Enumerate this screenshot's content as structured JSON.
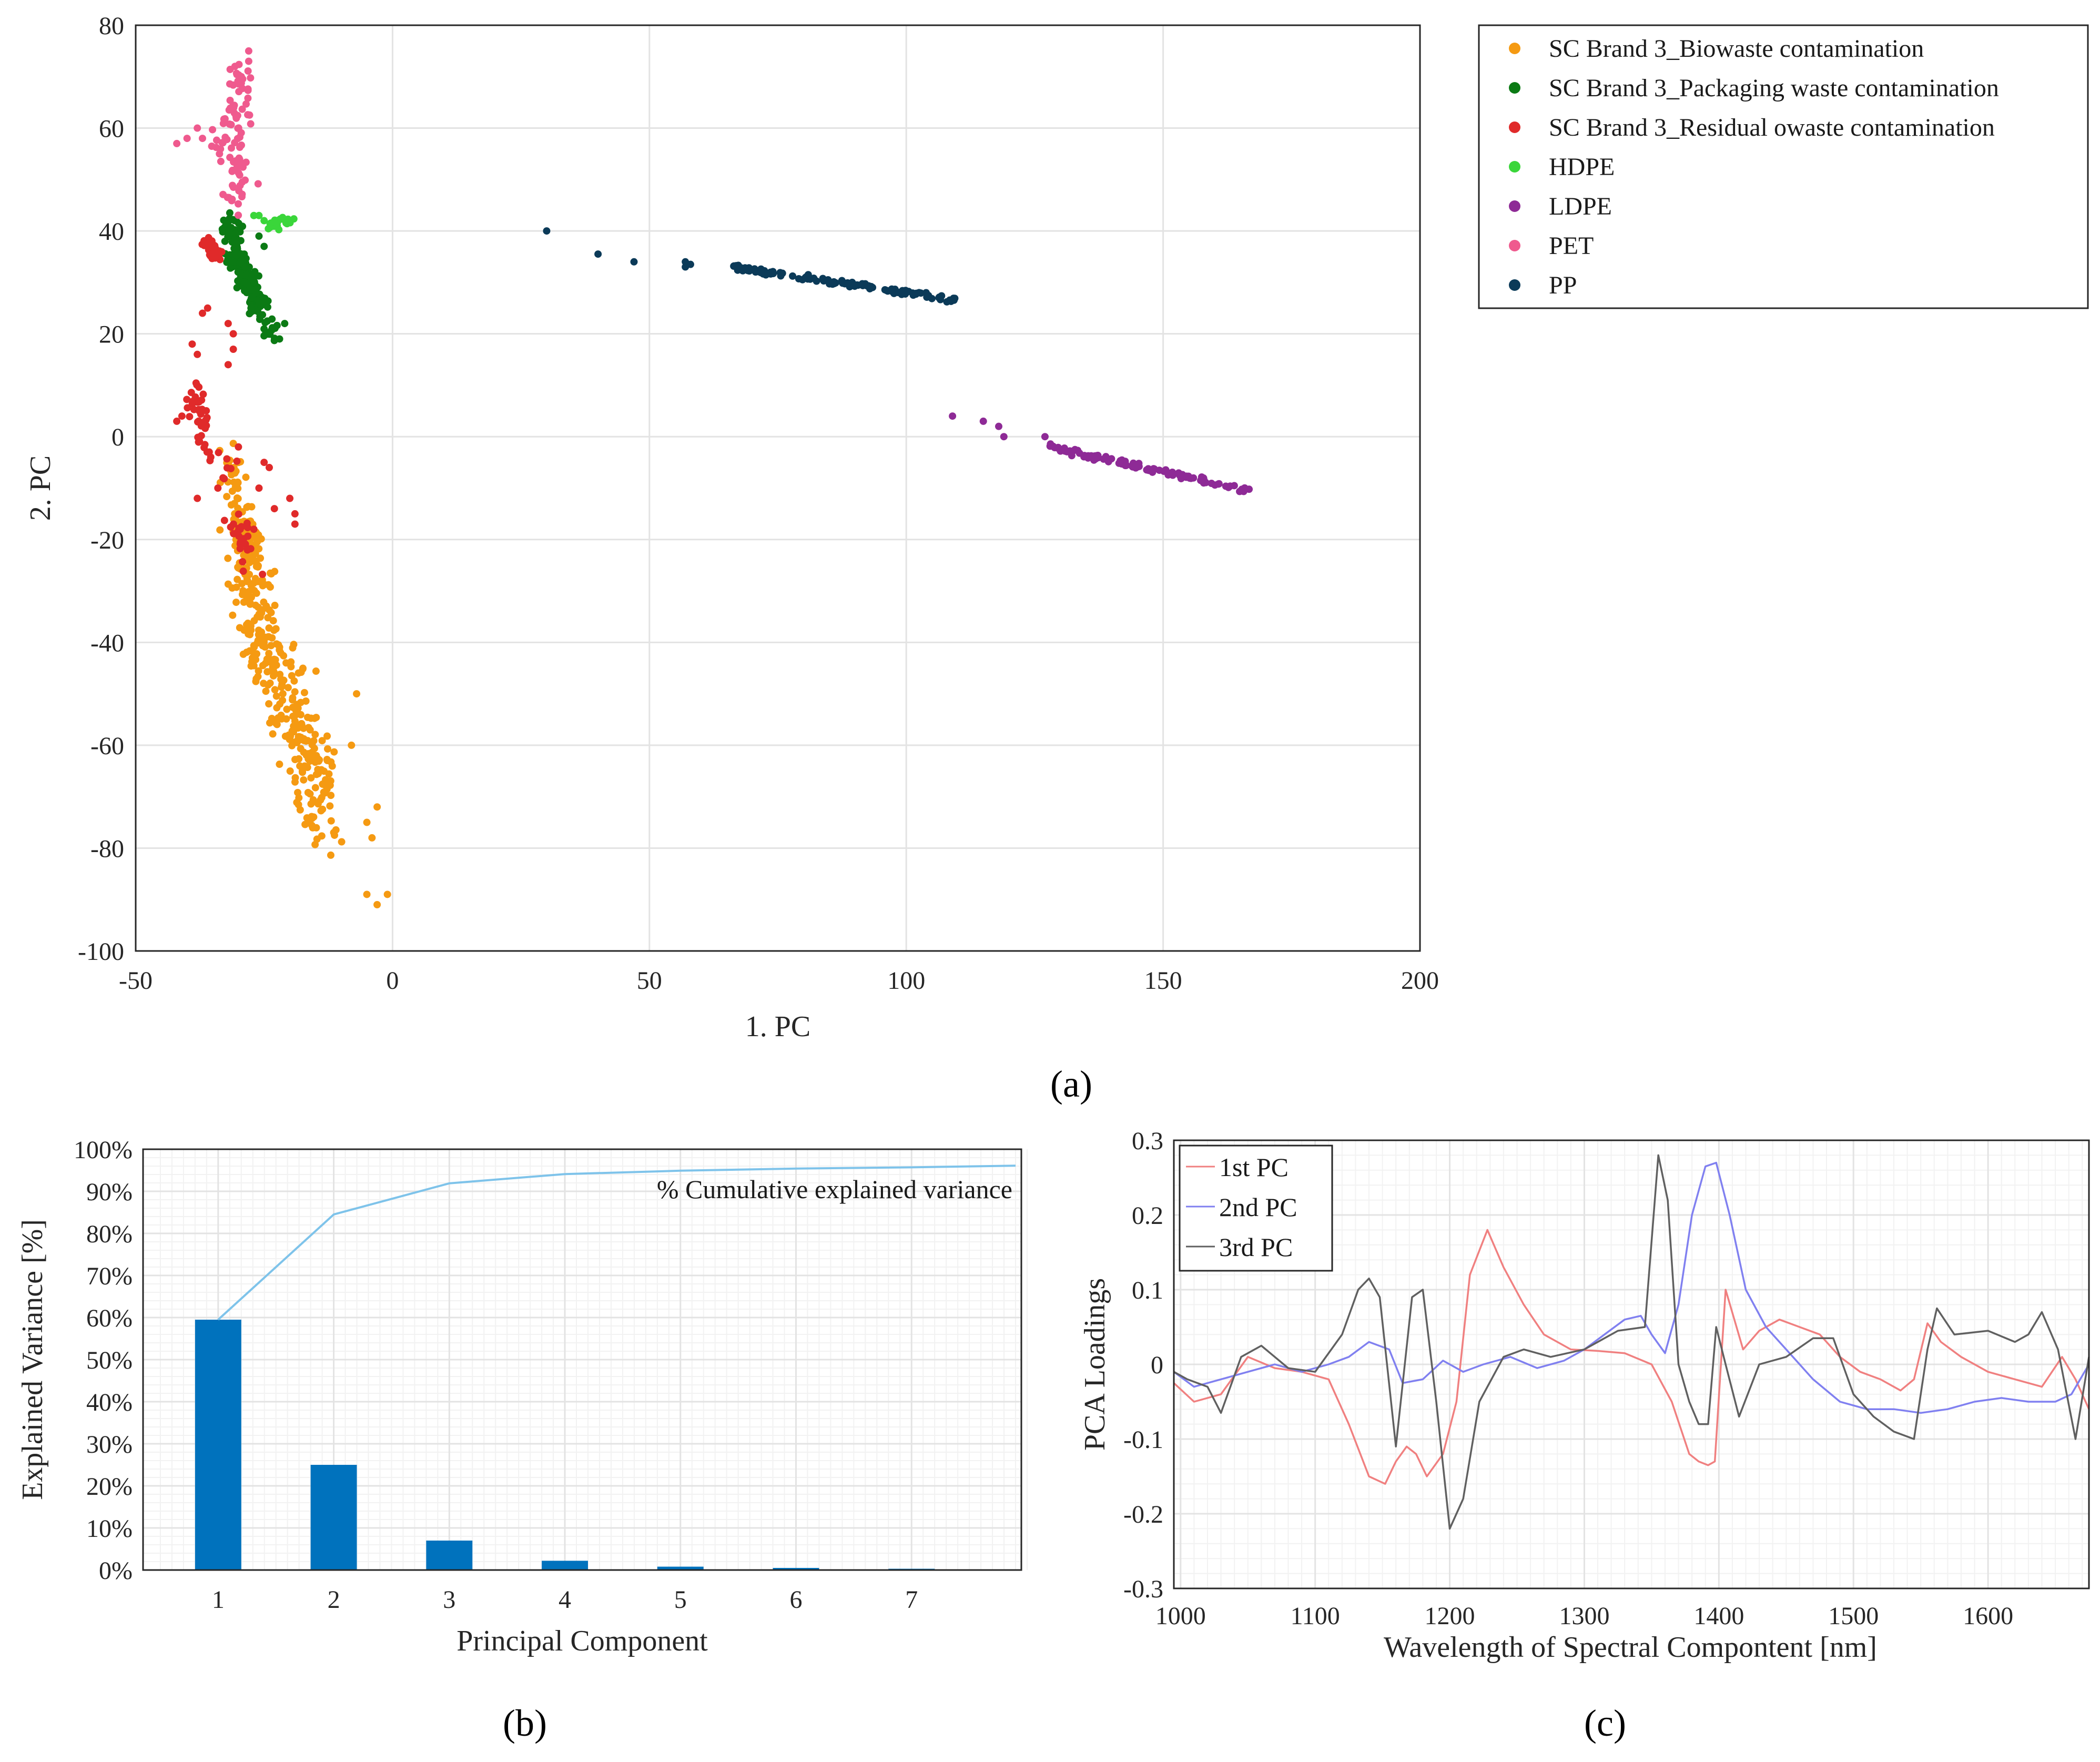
{
  "panel_a": {
    "label": "(a)",
    "xlabel": "1. PC",
    "ylabel": "2. PC",
    "xticks": [
      "-50",
      "0",
      "50",
      "100",
      "150",
      "200"
    ],
    "yticks": [
      "80",
      "60",
      "40",
      "20",
      "0",
      "-20",
      "-40",
      "-60",
      "-80",
      "-100"
    ],
    "legend": [
      {
        "label": "SC Brand 3_Biowaste contamination",
        "color": "#f59a12"
      },
      {
        "label": "SC Brand 3_Packaging waste contamination",
        "color": "#0b7a14"
      },
      {
        "label": "SC Brand 3_Residual owaste contamination",
        "color": "#e02a2a"
      },
      {
        "label": "HDPE",
        "color": "#3ad63a"
      },
      {
        "label": "LDPE",
        "color": "#8e2a96"
      },
      {
        "label": "PET",
        "color": "#ef5a8e"
      },
      {
        "label": "PP",
        "color": "#0b3a58"
      }
    ]
  },
  "panel_b": {
    "label": "(b)",
    "xlabel": "Principal Component",
    "ylabel": "Explained Variance [%]",
    "annotation": "% Cumulative explained variance",
    "xticks": [
      "1",
      "2",
      "3",
      "4",
      "5",
      "6",
      "7"
    ],
    "yticks": [
      "100%",
      "90%",
      "80%",
      "70%",
      "60%",
      "50%",
      "40%",
      "30%",
      "20%",
      "10%",
      "0%"
    ],
    "bar_color": "#0072bd",
    "line_color": "#7ec3ea"
  },
  "panel_c": {
    "label": "(c)",
    "xlabel": "Wavelength of Spectral Compontent [nm]",
    "ylabel": "PCA Loadings",
    "xticks": [
      "1000",
      "1100",
      "1200",
      "1300",
      "1400",
      "1500",
      "1600"
    ],
    "yticks": [
      "0.3",
      "0.2",
      "0.1",
      "0",
      "-0.1",
      "-0.2",
      "-0.3"
    ],
    "legend": [
      {
        "label": "1st PC",
        "color": "#f08080"
      },
      {
        "label": "2nd PC",
        "color": "#8080f0"
      },
      {
        "label": "3rd PC",
        "color": "#606060"
      }
    ]
  },
  "chart_data": [
    {
      "type": "scatter",
      "xlabel": "1. PC",
      "ylabel": "2. PC",
      "xlim": [
        -50,
        200
      ],
      "ylim": [
        -100,
        80
      ],
      "grid": true,
      "legend_position": "outside top-right",
      "series": [
        {
          "name": "SC Brand 3_Biowaste contamination",
          "color": "#f59a12",
          "clusters": [
            {
              "x0": -32,
              "y0": -4,
              "x1": -28,
              "y1": -20,
              "spread": 2,
              "n": 60
            },
            {
              "x0": -29,
              "y0": -20,
              "x1": -24,
              "y1": -45,
              "spread": 3.5,
              "n": 130
            },
            {
              "x0": -25,
              "y0": -42,
              "x1": -15,
              "y1": -65,
              "spread": 4.5,
              "n": 150
            },
            {
              "x0": -17,
              "y0": -60,
              "x1": -13,
              "y1": -80,
              "spread": 3,
              "n": 60
            }
          ],
          "points": [
            [
              -8,
              -60
            ],
            [
              -5,
              -75
            ],
            [
              -4,
              -78
            ],
            [
              -3,
              -72
            ],
            [
              -5,
              -89
            ],
            [
              -3,
              -91
            ],
            [
              -1,
              -89
            ],
            [
              -7,
              -50
            ]
          ]
        },
        {
          "name": "SC Brand 3_Packaging waste contamination",
          "color": "#0b7a14",
          "clusters": [
            {
              "x0": -32,
              "y0": 42,
              "x1": -29,
              "y1": 33,
              "spread": 1.6,
              "n": 70
            },
            {
              "x0": -30,
              "y0": 34,
              "x1": -26,
              "y1": 26,
              "spread": 2,
              "n": 90
            },
            {
              "x0": -27,
              "y0": 26,
              "x1": -23,
              "y1": 20,
              "spread": 1.5,
              "n": 30
            }
          ],
          "points": [
            [
              -22,
              19
            ],
            [
              -21,
              22
            ],
            [
              -25,
              37
            ],
            [
              -26,
              39
            ]
          ]
        },
        {
          "name": "SC Brand 3_Residual owaste contamination",
          "color": "#e02a2a",
          "clusters": [
            {
              "x0": -36,
              "y0": 38,
              "x1": -34,
              "y1": 35,
              "spread": 1.2,
              "n": 40
            },
            {
              "x0": -39,
              "y0": 10,
              "x1": -36,
              "y1": 0,
              "spread": 1.5,
              "n": 30
            },
            {
              "x0": -38,
              "y0": -1,
              "x1": -31,
              "y1": -6,
              "spread": 1.5,
              "n": 15
            },
            {
              "x0": -31,
              "y0": -15,
              "x1": -28,
              "y1": -25,
              "spread": 2,
              "n": 25
            }
          ],
          "points": [
            [
              -36,
              25
            ],
            [
              -37,
              24
            ],
            [
              -32,
              22
            ],
            [
              -31,
              20
            ],
            [
              -31,
              17
            ],
            [
              -32,
              14
            ],
            [
              -39,
              18
            ],
            [
              -38,
              16
            ],
            [
              -42,
              3
            ],
            [
              -41,
              4
            ],
            [
              -25,
              -5
            ],
            [
              -24,
              -6
            ],
            [
              -23,
              -14
            ],
            [
              -20,
              -12
            ],
            [
              -19,
              -15
            ],
            [
              -19,
              -17
            ],
            [
              -27,
              -18
            ],
            [
              -26,
              -10
            ],
            [
              -33,
              -8
            ],
            [
              -34,
              -10
            ],
            [
              -38,
              -12
            ],
            [
              -30,
              -2
            ]
          ]
        },
        {
          "name": "HDPE",
          "color": "#3ad63a",
          "clusters": [
            {
              "x0": -24,
              "y0": 41,
              "x1": -20,
              "y1": 42,
              "spread": 0.8,
              "n": 25
            }
          ],
          "points": [
            [
              -27,
              43
            ],
            [
              -26,
              43
            ],
            [
              -25,
              42
            ]
          ]
        },
        {
          "name": "LDPE",
          "color": "#8e2a96",
          "clusters": [
            {
              "x0": 128,
              "y0": -2,
              "x1": 167,
              "y1": -10.5,
              "spread": 0.5,
              "n": 110
            }
          ],
          "points": [
            [
              109,
              4
            ],
            [
              115,
              3
            ],
            [
              118,
              2
            ],
            [
              119,
              0
            ],
            [
              127,
              0
            ]
          ]
        },
        {
          "name": "PET",
          "color": "#ef5a8e",
          "clusters": [
            {
              "x0": -30,
              "y0": 72,
              "x1": -30,
              "y1": 60,
              "spread": 2,
              "n": 40
            },
            {
              "x0": -33,
              "y0": 61,
              "x1": -30,
              "y1": 45,
              "spread": 2.8,
              "n": 50
            }
          ],
          "points": [
            [
              -42,
              57
            ],
            [
              -40,
              58
            ],
            [
              -37,
              58
            ],
            [
              -38,
              60
            ],
            [
              -28,
              75
            ],
            [
              -28,
              73
            ]
          ]
        },
        {
          "name": "PP",
          "color": "#0b3a58",
          "clusters": [
            {
              "x0": 66,
              "y0": 33,
              "x1": 110,
              "y1": 26.5,
              "spread": 0.5,
              "n": 120
            }
          ],
          "points": [
            [
              30,
              40
            ],
            [
              40,
              35.5
            ],
            [
              47,
              34
            ],
            [
              57,
              33
            ],
            [
              57,
              34
            ],
            [
              58,
              33.5
            ]
          ]
        }
      ]
    },
    {
      "type": "bar",
      "xlabel": "Principal Component",
      "ylabel": "Explained Variance [%]",
      "categories": [
        "1",
        "2",
        "3",
        "4",
        "5",
        "6",
        "7"
      ],
      "values": [
        59.5,
        25,
        7,
        2.2,
        0.8,
        0.5,
        0.3
      ],
      "cumulative_line": {
        "name": "% Cumulative explained variance",
        "x": [
          1,
          2,
          3,
          4,
          5,
          6,
          7,
          7.9
        ],
        "values": [
          59.5,
          84.5,
          91.9,
          94.1,
          94.9,
          95.4,
          95.7,
          96.1
        ]
      },
      "ylim": [
        0,
        100
      ],
      "grid": true
    },
    {
      "type": "line",
      "xlabel": "Wavelength of Spectral Compontent [nm]",
      "ylabel": "PCA Loadings",
      "xlim": [
        995,
        1675
      ],
      "ylim": [
        -0.3,
        0.3
      ],
      "grid": true,
      "legend_position": "top-left",
      "series": [
        {
          "name": "1st PC",
          "color": "#f08080",
          "x": [
            995,
            1010,
            1030,
            1050,
            1070,
            1090,
            1110,
            1125,
            1140,
            1152,
            1160,
            1168,
            1175,
            1183,
            1195,
            1205,
            1215,
            1228,
            1240,
            1255,
            1270,
            1290,
            1310,
            1330,
            1350,
            1365,
            1378,
            1385,
            1392,
            1397,
            1405,
            1418,
            1430,
            1445,
            1460,
            1475,
            1490,
            1505,
            1520,
            1535,
            1545,
            1555,
            1565,
            1580,
            1600,
            1620,
            1640,
            1655,
            1665,
            1675
          ],
          "values": [
            -0.025,
            -0.05,
            -0.04,
            0.01,
            -0.005,
            -0.01,
            -0.02,
            -0.08,
            -0.15,
            -0.16,
            -0.13,
            -0.11,
            -0.12,
            -0.15,
            -0.12,
            -0.05,
            0.12,
            0.18,
            0.13,
            0.08,
            0.04,
            0.02,
            0.018,
            0.015,
            0.0,
            -0.05,
            -0.12,
            -0.13,
            -0.135,
            -0.13,
            0.1,
            0.02,
            0.045,
            0.06,
            0.05,
            0.04,
            0.01,
            -0.01,
            -0.02,
            -0.035,
            -0.02,
            0.055,
            0.03,
            0.01,
            -0.01,
            -0.02,
            -0.03,
            0.01,
            -0.02,
            -0.06
          ]
        },
        {
          "name": "2nd PC",
          "color": "#8080f0",
          "x": [
            995,
            1010,
            1030,
            1050,
            1070,
            1090,
            1110,
            1125,
            1140,
            1155,
            1165,
            1180,
            1195,
            1210,
            1225,
            1245,
            1265,
            1285,
            1300,
            1315,
            1330,
            1342,
            1350,
            1360,
            1370,
            1380,
            1390,
            1398,
            1408,
            1420,
            1435,
            1450,
            1470,
            1490,
            1510,
            1530,
            1550,
            1570,
            1590,
            1610,
            1630,
            1650,
            1662,
            1675
          ],
          "values": [
            -0.01,
            -0.03,
            -0.02,
            -0.01,
            0.0,
            -0.01,
            0.0,
            0.01,
            0.03,
            0.02,
            -0.025,
            -0.02,
            0.005,
            -0.01,
            0.0,
            0.01,
            -0.005,
            0.005,
            0.02,
            0.04,
            0.06,
            0.065,
            0.04,
            0.015,
            0.08,
            0.2,
            0.265,
            0.27,
            0.2,
            0.1,
            0.05,
            0.02,
            -0.02,
            -0.05,
            -0.06,
            -0.06,
            -0.065,
            -0.06,
            -0.05,
            -0.045,
            -0.05,
            -0.05,
            -0.04,
            0.0
          ]
        },
        {
          "name": "3rd PC",
          "color": "#606060",
          "x": [
            995,
            1005,
            1020,
            1030,
            1045,
            1060,
            1080,
            1100,
            1120,
            1132,
            1140,
            1148,
            1160,
            1172,
            1180,
            1190,
            1200,
            1210,
            1222,
            1240,
            1255,
            1275,
            1300,
            1325,
            1345,
            1355,
            1362,
            1370,
            1378,
            1385,
            1392,
            1398,
            1405,
            1415,
            1430,
            1450,
            1470,
            1485,
            1500,
            1515,
            1530,
            1545,
            1555,
            1562,
            1575,
            1600,
            1620,
            1630,
            1640,
            1652,
            1665,
            1675
          ],
          "values": [
            -0.01,
            -0.02,
            -0.03,
            -0.065,
            0.01,
            0.025,
            -0.005,
            -0.01,
            0.04,
            0.1,
            0.115,
            0.09,
            -0.11,
            0.09,
            0.1,
            -0.05,
            -0.22,
            -0.18,
            -0.05,
            0.01,
            0.02,
            0.01,
            0.02,
            0.045,
            0.05,
            0.28,
            0.22,
            0.0,
            -0.05,
            -0.08,
            -0.08,
            0.05,
            0.0,
            -0.07,
            0.0,
            0.01,
            0.035,
            0.035,
            -0.04,
            -0.07,
            -0.09,
            -0.1,
            0.02,
            0.075,
            0.04,
            0.045,
            0.03,
            0.04,
            0.07,
            0.02,
            -0.1,
            0.01
          ]
        }
      ]
    }
  ]
}
